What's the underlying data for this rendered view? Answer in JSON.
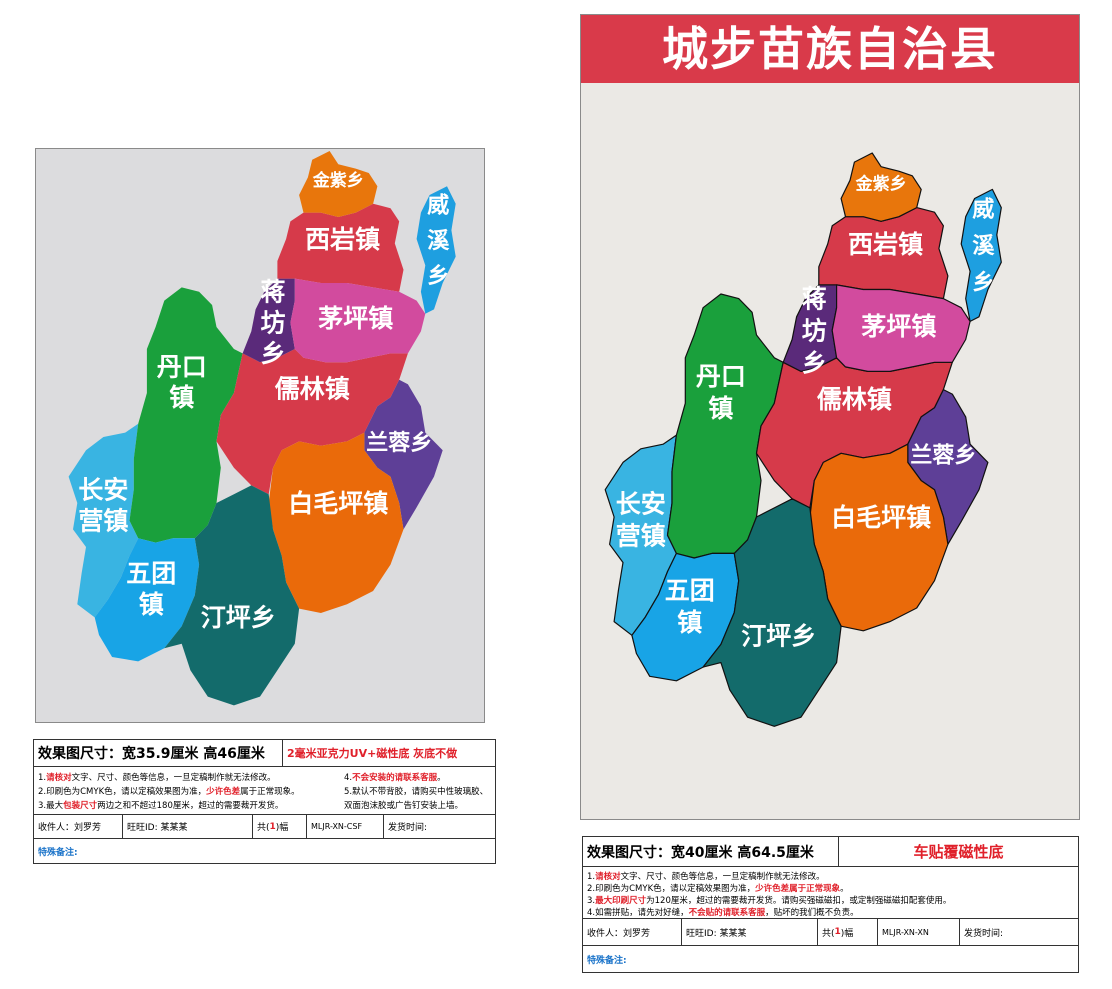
{
  "right_title": "城步苗族自治县",
  "towns": {
    "jinzi": "金紫乡",
    "xiyan": "西岩镇",
    "weixi": [
      "威",
      "溪",
      "乡"
    ],
    "jiangfang": [
      "蒋",
      "坊",
      "乡"
    ],
    "maoping": "茅坪镇",
    "dankou": [
      "丹口",
      "镇"
    ],
    "rulin": "儒林镇",
    "lanrong": "兰蓉乡",
    "changan": [
      "长安",
      "营镇"
    ],
    "baimaoping": "白毛坪镇",
    "wutuan": [
      "五团",
      "镇"
    ],
    "tingping": "汀坪乡"
  },
  "colors": {
    "jinzi": "#e8760c",
    "xiyan": "#d63a4a",
    "weixi": "#1e9fe0",
    "jiangfang": "#5a2a7a",
    "maoping": "#d24b9e",
    "dankou": "#1aa03c",
    "rulin": "#d63a4a",
    "lanrong": "#5e3f97",
    "changan": "#39b4e2",
    "baimaoping": "#ea6a0a",
    "wutuan": "#18a4e6",
    "tingping": "#136b6b"
  },
  "left_info": {
    "dim": "效果图尺寸：宽35.9厘米  高46厘米",
    "material": "2毫米亚克力UV+磁性底 灰底不做",
    "notes_left": [
      [
        "1.",
        "请核对",
        "文字、尺寸、颜色等信息，一旦定稿制作就无法修改。"
      ],
      [
        "2.印刷色为CMYK色，请以定稿效果图为准，",
        "少许色差",
        "属于正常现象。"
      ],
      [
        "3.最大",
        "包装尺寸",
        "两边之和不超过180厘米，超过的需要裁开发货。"
      ]
    ],
    "notes_right": [
      [
        "4.",
        "不会安装的请联系客服",
        "。"
      ],
      [
        "5.默认不带背胶，请购买中性玻璃胶、"
      ],
      [
        "   双面泡沫胶或广告钉安装上墙。"
      ]
    ],
    "receiver": "收件人：刘罗芳",
    "wangwang": "旺旺ID:  某某某",
    "count_pre": "共(",
    "count": "1",
    "count_post": ")幅",
    "code": "MLJR-XN-CSF",
    "ship": "发货时间:",
    "remark": "特殊备注:"
  },
  "right_info": {
    "dim": "效果图尺寸：宽40厘米  高64.5厘米",
    "material": "车贴覆磁性底",
    "notes": [
      [
        "1.",
        "请核对",
        "文字、尺寸、颜色等信息，一旦定稿制作就无法修改。"
      ],
      [
        "2.印刷色为CMYK色，请以定稿效果图为准，",
        "少许色差属于正常现象",
        "。"
      ],
      [
        "3.",
        "最大印刷尺寸",
        "为120厘米，超过的需要裁开发货。请购买强磁磁扣，或定制强磁磁扣配套使用。"
      ],
      [
        "4.如需拼贴，请先对好缝，",
        "不会贴的请联系客服",
        "，贴坏的我们概不负责。"
      ]
    ],
    "receiver": "收件人：刘罗芳",
    "wangwang": "旺旺ID:  某某某",
    "count_pre": "共(",
    "count": "1",
    "count_post": ")幅",
    "code": "MLJR-XN-XN",
    "ship": "发货时间:",
    "remark": "特殊备注:"
  }
}
